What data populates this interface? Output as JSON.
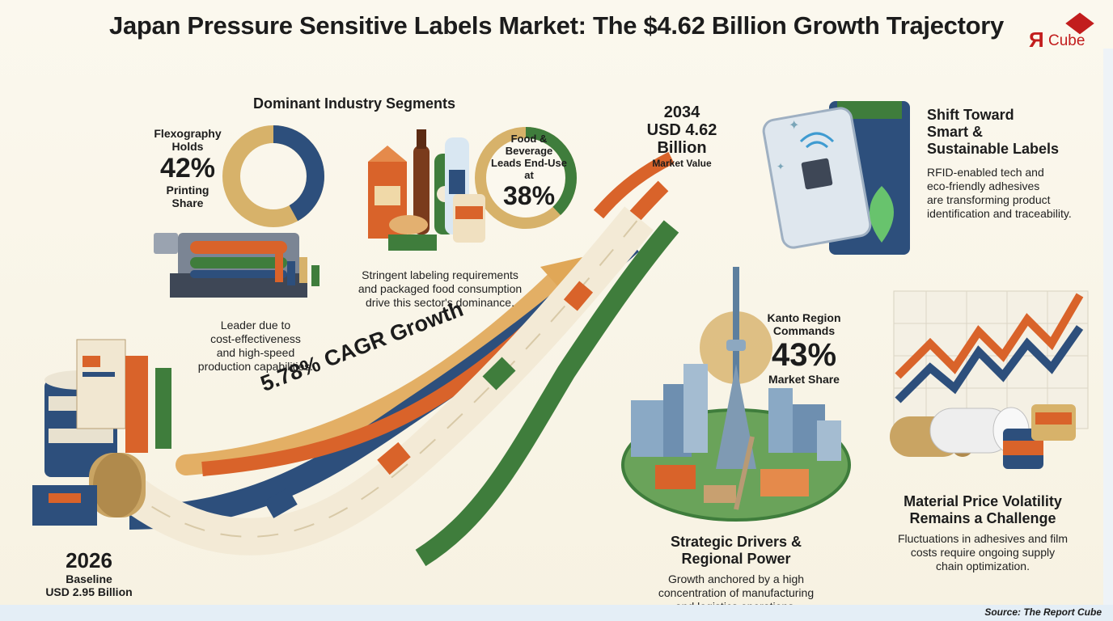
{
  "title": "Japan Pressure Sensitive Labels Market: The $4.62 Billion Growth Trajectory",
  "logo": {
    "r": "Я",
    "cube": "Cube"
  },
  "segments": {
    "heading": "Dominant Industry Segments",
    "flexo": {
      "line1": "Flexography",
      "line2": "Holds",
      "value": "42%",
      "line3": "Printing",
      "line4": "Share",
      "desc1": "Leader due to",
      "desc2": "cost-effectiveness",
      "desc3": "and high-speed",
      "desc4": "production capabilities.",
      "share": 42
    },
    "food": {
      "line1": "Food &",
      "line2": "Beverage",
      "line3": "Leads End-Use",
      "line4": "at",
      "value": "38%",
      "desc1": "Stringent labeling requirements",
      "desc2": "and packaged food consumption",
      "desc3": "drive this sector's dominance.",
      "share": 38
    }
  },
  "target": {
    "year": "2034",
    "value1": "USD 4.62",
    "value2": "Billion",
    "label": "Market Value"
  },
  "cagr": "5.78% CAGR Growth",
  "baseline": {
    "year": "2026",
    "label": "Baseline",
    "value": "USD 2.95 Billion"
  },
  "smart": {
    "title1": "Shift Toward",
    "title2": "Smart &",
    "title3": "Sustainable Labels",
    "desc1": "RFID-enabled tech and",
    "desc2": "eco-friendly adhesives",
    "desc3": "are transforming product",
    "desc4": "identification and traceability."
  },
  "kanto": {
    "line1": "Kanto Region",
    "line2": "Commands",
    "value": "43%",
    "line3": "Market Share"
  },
  "drivers": {
    "title1": "Strategic Drivers &",
    "title2": "Regional Power",
    "desc1": "Growth anchored by a high",
    "desc2": "concentration of manufacturing",
    "desc3": "and logistics operations."
  },
  "material": {
    "title1": "Material Price Volatility",
    "title2": "Remains a Challenge",
    "desc1": "Fluctuations in adhesives and film",
    "desc2": "costs require ongoing supply",
    "desc3": "chain optimization."
  },
  "source": "Source: The Report Cube",
  "colors": {
    "navy": "#2d4f7c",
    "gold": "#d7b26a",
    "green": "#3f7d3c",
    "orange": "#d9632a",
    "red": "#c21d1d"
  }
}
